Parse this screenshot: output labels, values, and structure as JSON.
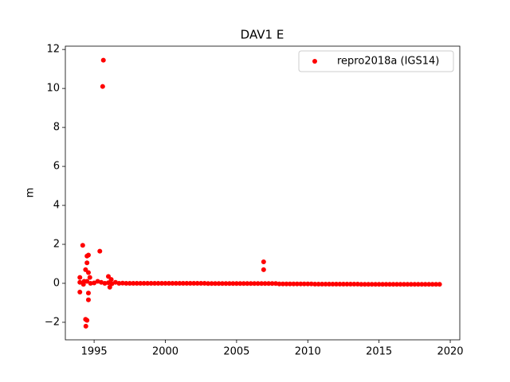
{
  "chart_data": {
    "type": "scatter",
    "title": "DAV1 E",
    "ylabel": "m",
    "xlim": [
      1992.98,
      2020.67
    ],
    "ylim": [
      -2.9,
      12.17
    ],
    "xticks": [
      1995,
      2000,
      2005,
      2010,
      2015,
      2020
    ],
    "yticks": [
      {
        "value": -2,
        "label": "−2"
      },
      0,
      2,
      4,
      6,
      8,
      10,
      12
    ],
    "legend": "upper right",
    "series": [
      {
        "name": "repro2018a (IGS14)",
        "color": "#ff0000",
        "x": [
          1994,
          1994.25,
          1994.5,
          1994.75,
          1995,
          1995.25,
          1995.5,
          1995.75,
          1996,
          1996.25,
          1996.5,
          1996.75,
          1997,
          1997.25,
          1997.5,
          1997.75,
          1998,
          1998.25,
          1998.5,
          1998.75,
          1999,
          1999.25,
          1999.5,
          1999.75,
          2000,
          2000.25,
          2000.5,
          2000.75,
          2001,
          2001.25,
          2001.5,
          2001.75,
          2002,
          2002.25,
          2002.5,
          2002.75,
          2003,
          2003.25,
          2003.5,
          2003.75,
          2004,
          2004.25,
          2004.5,
          2004.75,
          2005,
          2005.25,
          2005.5,
          2005.75,
          2006,
          2006.25,
          2006.5,
          2006.75,
          2007,
          2007.25,
          2007.5,
          2007.75,
          2008,
          2008.25,
          2008.5,
          2008.75,
          2009,
          2009.25,
          2009.5,
          2009.75,
          2010,
          2010.25,
          2010.5,
          2010.75,
          2011,
          2011.25,
          2011.5,
          2011.75,
          2012,
          2012.25,
          2012.5,
          2012.75,
          2013,
          2013.25,
          2013.5,
          2013.75,
          2014,
          2014.25,
          2014.5,
          2014.75,
          2015,
          2015.25,
          2015.5,
          2015.75,
          2016,
          2016.25,
          2016.5,
          2016.75,
          2017,
          2017.25,
          2017.5,
          2017.75,
          2018,
          2018.25,
          2018.5,
          2018.75,
          2019,
          2019.25,
          1994.2,
          1994.0,
          1994.4,
          1994.42,
          1994.5,
          1994.5,
          1994.6,
          1994.5,
          1994.4,
          1994.6,
          1994.6,
          1994.6,
          1995.4,
          1995.6,
          1995.65,
          1996.0,
          1996.1,
          1996.2,
          1994.0,
          2006.9,
          2006.9,
          1994.3,
          1994.7
        ],
        "values": [
          0.05,
          -0.05,
          0.1,
          0.0,
          0.02,
          0.1,
          0.05,
          0.0,
          0.03,
          -0.02,
          0.05,
          0.0,
          0.01,
          0.0,
          0.0,
          0.0,
          0,
          0,
          0,
          0,
          0,
          0,
          0,
          0,
          0,
          0,
          0,
          0,
          0,
          0,
          0,
          0,
          0,
          0,
          0,
          0,
          -0.01,
          -0.01,
          -0.01,
          -0.01,
          -0.01,
          -0.01,
          -0.01,
          -0.01,
          -0.01,
          -0.01,
          -0.01,
          -0.01,
          -0.01,
          -0.01,
          -0.01,
          -0.01,
          -0.01,
          -0.01,
          -0.01,
          -0.01,
          -0.03,
          -0.03,
          -0.03,
          -0.03,
          -0.03,
          -0.03,
          -0.03,
          -0.03,
          -0.03,
          -0.03,
          -0.04,
          -0.04,
          -0.04,
          -0.04,
          -0.04,
          -0.04,
          -0.04,
          -0.04,
          -0.04,
          -0.04,
          -0.04,
          -0.04,
          -0.04,
          -0.05,
          -0.05,
          -0.05,
          -0.05,
          -0.05,
          -0.05,
          -0.05,
          -0.05,
          -0.05,
          -0.05,
          -0.05,
          -0.05,
          -0.05,
          -0.05,
          -0.05,
          -0.05,
          -0.05,
          -0.05,
          -0.05,
          -0.05,
          -0.05,
          -0.05,
          -0.05,
          1.95,
          -0.45,
          -1.85,
          -2.2,
          -1.9,
          1.4,
          1.45,
          1.05,
          0.7,
          0.55,
          -0.5,
          -0.85,
          1.65,
          10.1,
          11.45,
          0.35,
          -0.2,
          0.2,
          0.3,
          1.1,
          0.7,
          0.1,
          0.3
        ]
      }
    ]
  }
}
